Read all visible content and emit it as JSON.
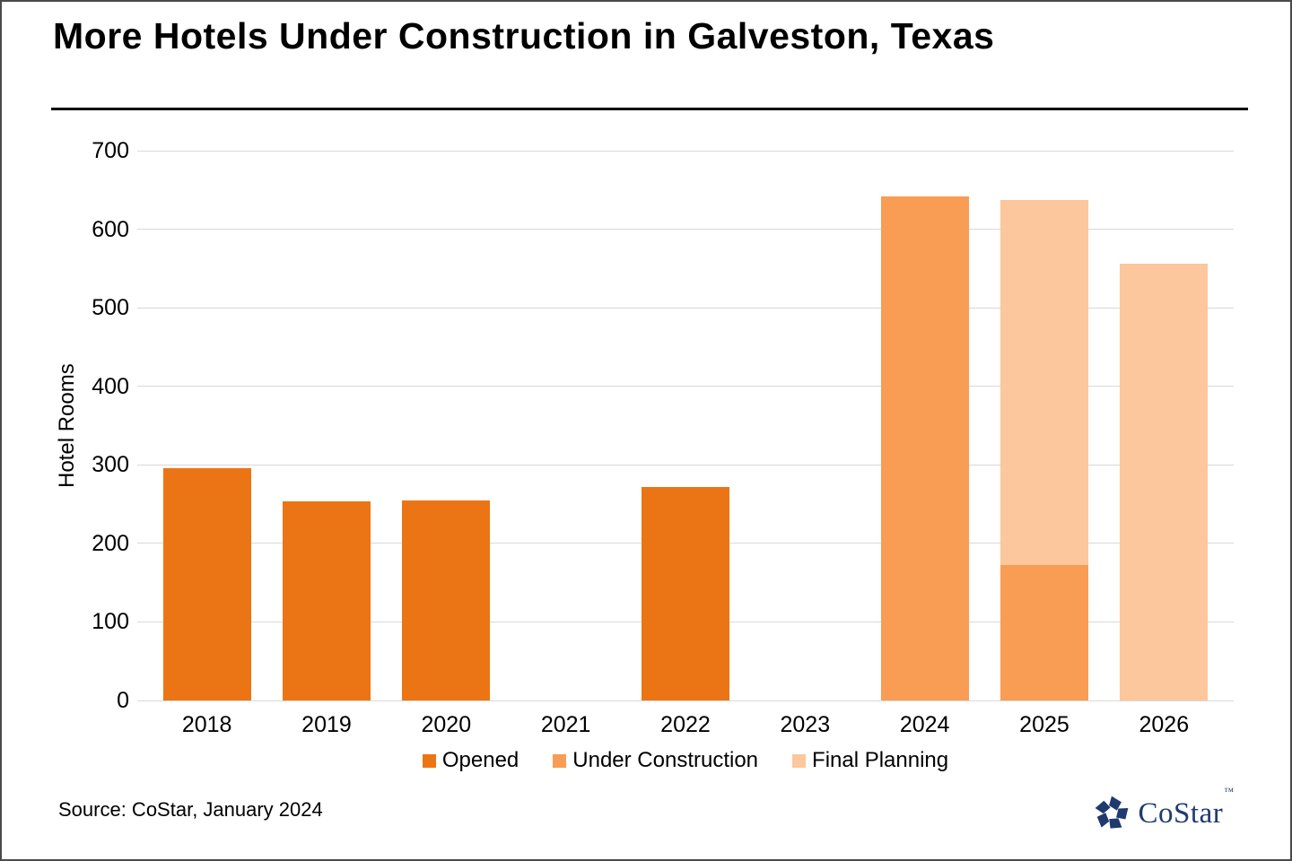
{
  "title": "More Hotels Under Construction in Galveston, Texas",
  "source": "Source: CoStar, January 2024",
  "logo": {
    "text": "CoStar",
    "tm": "™",
    "color": "#1f3a6e"
  },
  "colors": {
    "opened": "#eb7514",
    "under_construction": "#f99c54",
    "final_planning": "#fcc79c",
    "gridline": "#d9d9d9"
  },
  "chart_data": {
    "type": "bar",
    "stacked": true,
    "title": "More Hotels Under Construction in Galveston, Texas",
    "xlabel": "",
    "ylabel": "Hotel Rooms",
    "ylim": [
      0,
      700
    ],
    "ytick_step": 100,
    "grid": true,
    "legend_position": "bottom",
    "categories": [
      "2018",
      "2019",
      "2020",
      "2021",
      "2022",
      "2023",
      "2024",
      "2025",
      "2026"
    ],
    "series": [
      {
        "name": "Opened",
        "color_key": "opened",
        "values": [
          296,
          254,
          255,
          0,
          272,
          0,
          0,
          0,
          0
        ]
      },
      {
        "name": "Under Construction",
        "color_key": "under_construction",
        "values": [
          0,
          0,
          0,
          0,
          0,
          0,
          642,
          173,
          0
        ]
      },
      {
        "name": "Final Planning",
        "color_key": "final_planning",
        "values": [
          0,
          0,
          0,
          0,
          0,
          0,
          0,
          464,
          556
        ]
      }
    ]
  }
}
